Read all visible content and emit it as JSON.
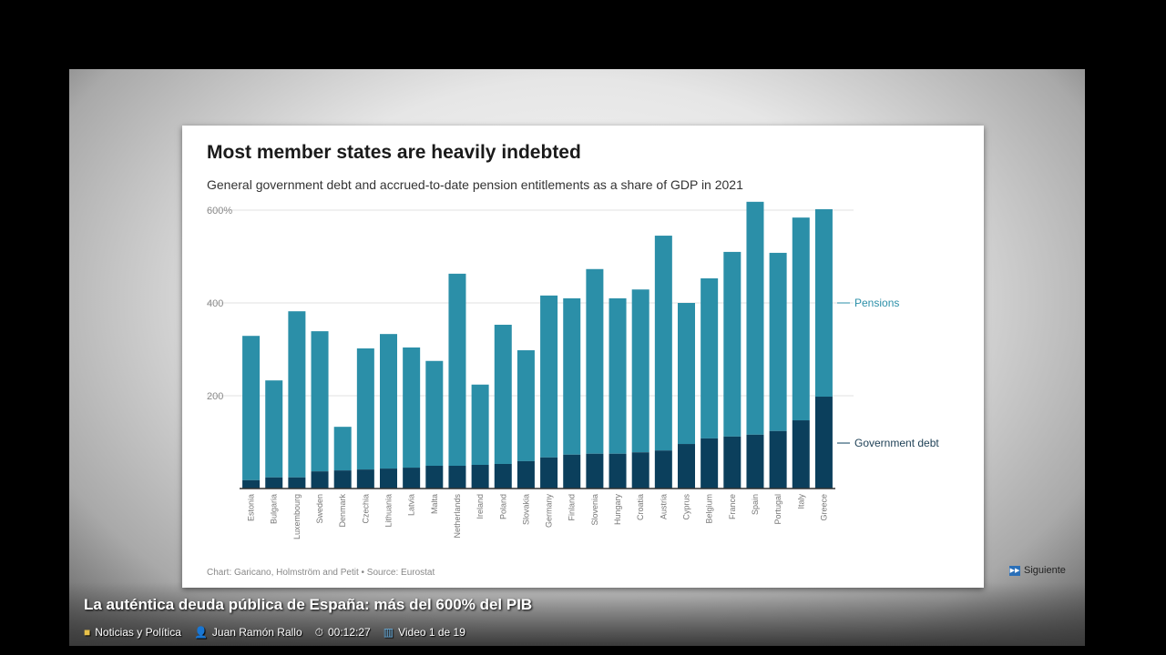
{
  "video": {
    "headline": "La auténtica deuda pública de España: más del 600% del PIB",
    "category": "Noticias y Política",
    "author": "Juan Ramón Rallo",
    "duration": "00:12:27",
    "position": "Video 1 de 19",
    "next_label": "Siguiente"
  },
  "colors": {
    "pensions": "#2b8fa8",
    "debt": "#0b3f5c"
  },
  "chart_data": {
    "type": "bar",
    "stacked": true,
    "title": "Most member states are heavily indebted",
    "subtitle": "General government debt and accrued-to-date pension entitlements as a share of GDP in 2021",
    "source": "Chart: Garicano, Holmström and Petit • Source: Eurostat",
    "xlabel": "",
    "ylabel": "",
    "ylim": [
      0,
      620
    ],
    "yticks": [
      {
        "value": 200,
        "label": "200"
      },
      {
        "value": 400,
        "label": "400"
      },
      {
        "value": 600,
        "label": "600%"
      }
    ],
    "grid": true,
    "categories": [
      "Estonia",
      "Bulgaria",
      "Luxembourg",
      "Sweden",
      "Denmark",
      "Czechia",
      "Lithuania",
      "Latvia",
      "Malta",
      "Netherlands",
      "Ireland",
      "Poland",
      "Slovakia",
      "Germany",
      "Finland",
      "Slovenia",
      "Hungary",
      "Croatia",
      "Austria",
      "Cyprus",
      "Belgium",
      "France",
      "Spain",
      "Portugal",
      "Italy",
      "Greece"
    ],
    "series": [
      {
        "name": "Government debt",
        "values": [
          18,
          24,
          24,
          37,
          39,
          41,
          43,
          45,
          49,
          49,
          51,
          53,
          59,
          67,
          73,
          75,
          75,
          78,
          82,
          96,
          108,
          112,
          116,
          124,
          147,
          198
        ]
      },
      {
        "name": "Pensions",
        "values": [
          311,
          209,
          358,
          302,
          94,
          261,
          290,
          259,
          226,
          414,
          173,
          300,
          239,
          349,
          337,
          398,
          335,
          351,
          463,
          304,
          345,
          398,
          502,
          384,
          437,
          404
        ]
      }
    ],
    "legend": "right, inline"
  }
}
